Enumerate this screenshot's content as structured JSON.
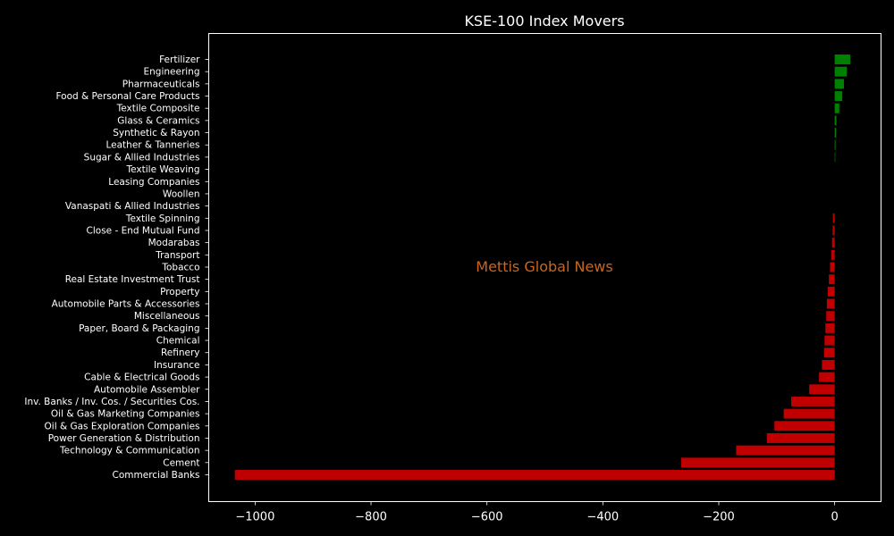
{
  "chart_data": {
    "type": "bar",
    "orientation": "horizontal",
    "title": "KSE-100 Index Movers",
    "xlabel": "",
    "ylabel": "",
    "xlim": [
      -1080,
      80
    ],
    "xticks": [
      -1000,
      -800,
      -600,
      -400,
      -200,
      0
    ],
    "xtick_labels": [
      "−1000",
      "−800",
      "−600",
      "−400",
      "−200",
      "0"
    ],
    "grid": false,
    "background": "#000000",
    "positive_color": "#008000",
    "negative_color": "#c00000",
    "watermark": "Mettis Global News",
    "watermark_color": "#c8661f",
    "categories": [
      "Fertilizer",
      "Engineering",
      "Pharmaceuticals",
      "Food & Personal Care Products",
      "Textile Composite",
      "Glass & Ceramics",
      "Synthetic & Rayon",
      "Leather & Tanneries",
      "Sugar & Allied Industries",
      "Textile Weaving",
      "Leasing Companies",
      "Woollen",
      "Vanaspati & Allied Industries",
      "Textile Spinning",
      "Close - End Mutual Fund",
      "Modarabas",
      "Transport",
      "Tobacco",
      "Real Estate Investment Trust",
      "Property",
      "Automobile Parts & Accessories",
      "Miscellaneous",
      "Paper, Board & Packaging",
      "Chemical",
      "Refinery",
      "Insurance",
      "Cable & Electrical Goods",
      "Automobile Assembler",
      "Inv. Banks / Inv. Cos. / Securities Cos.",
      "Oil & Gas Marketing Companies",
      "Oil & Gas Exploration Companies",
      "Power Generation & Distribution",
      "Technology & Communication",
      "Cement",
      "Commercial Banks"
    ],
    "values": [
      27,
      21,
      16,
      13,
      8,
      3,
      2.5,
      1.5,
      1,
      0,
      0,
      0,
      0,
      -3,
      -3.5,
      -4.5,
      -6,
      -8,
      -10,
      -12,
      -13.5,
      -14.5,
      -16,
      -17.5,
      -18.5,
      -22,
      -27,
      -44,
      -75,
      -88,
      -104,
      -117,
      -170,
      -265,
      -1035
    ]
  }
}
